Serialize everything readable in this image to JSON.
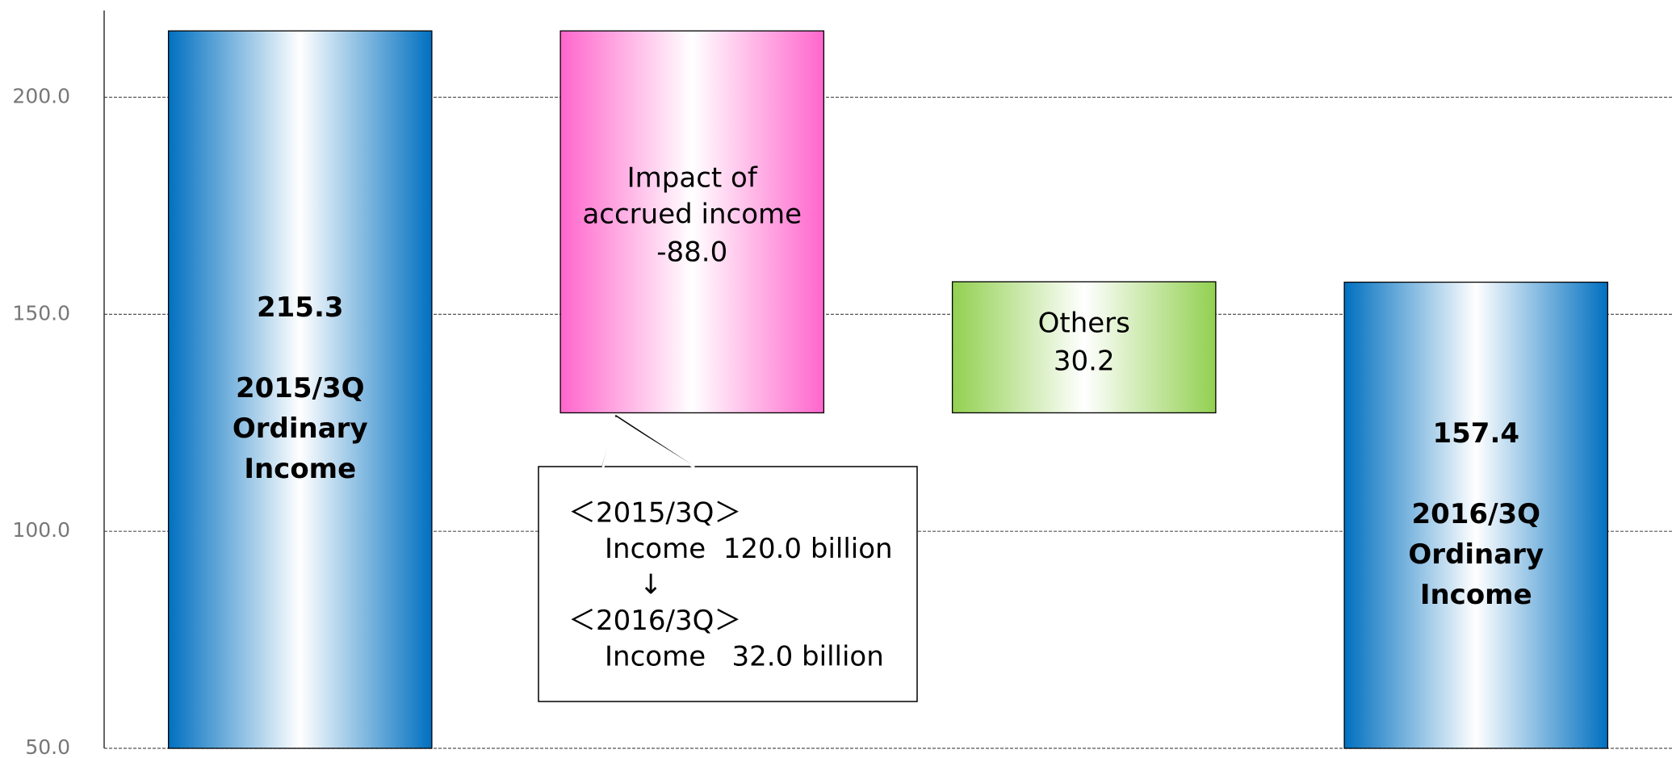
{
  "chart_data": {
    "type": "waterfall",
    "categories": [
      [
        "2015/3Q",
        "Ordinary",
        "Income"
      ],
      [
        "Impact of",
        "accrued income"
      ],
      [
        "Others"
      ],
      [
        "2016/3Q",
        "Ordinary",
        "Income"
      ]
    ],
    "measures": [
      "total",
      "relative",
      "relative",
      "total"
    ],
    "values": [
      215.3,
      -88.0,
      30.2,
      157.4
    ],
    "value_labels": [
      "215.3",
      "-88.0",
      "30.2",
      "157.4"
    ],
    "colors": [
      "#0070c0",
      "#ff66cc",
      "#92d050",
      "#0070c0"
    ],
    "ylim": [
      50,
      220
    ],
    "yticks": [
      {
        "value": 50,
        "label": "50.0"
      },
      {
        "value": 100,
        "label": "100.0"
      },
      {
        "value": 150,
        "label": "150.0"
      },
      {
        "value": 200,
        "label": "200.0"
      }
    ],
    "grid": true,
    "annotation": {
      "lines": [
        "＜2015/3Q＞",
        "Income  120.0 billion",
        "↓",
        "＜2016/3Q＞",
        "Income   32.0 billion"
      ]
    }
  }
}
